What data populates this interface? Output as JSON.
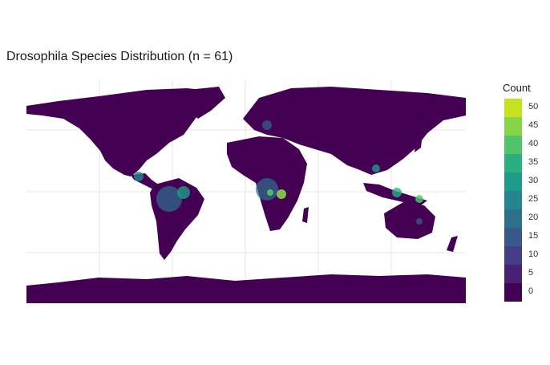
{
  "title": "Drosophila Species Distribution (n = 61)",
  "legend": {
    "title": "Count",
    "items": [
      {
        "label": "50",
        "color": "#c7e020"
      },
      {
        "label": "45",
        "color": "#86d549"
      },
      {
        "label": "40",
        "color": "#52c569"
      },
      {
        "label": "35",
        "color": "#2ab07f"
      },
      {
        "label": "30",
        "color": "#1e9b8a"
      },
      {
        "label": "25",
        "color": "#25858e"
      },
      {
        "label": "20",
        "color": "#2d708e"
      },
      {
        "label": "15",
        "color": "#38588c"
      },
      {
        "label": "10",
        "color": "#433e85"
      },
      {
        "label": "5",
        "color": "#482173"
      },
      {
        "label": "0",
        "color": "#440154"
      }
    ]
  },
  "colors": {
    "land": "#440154",
    "graticule": "#e6e6e6",
    "background": "#ffffff"
  }
}
